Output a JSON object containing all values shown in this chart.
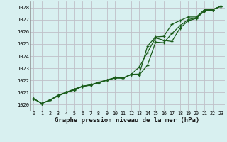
{
  "title": "Graphe pression niveau de la mer (hPa)",
  "background_color": "#d8f0f0",
  "plot_bg_color": "#d8f0f0",
  "grid_color": "#c0c0c8",
  "line_color": "#1a5c1a",
  "xlim": [
    -0.5,
    23.5
  ],
  "ylim": [
    1019.5,
    1028.5
  ],
  "yticks": [
    1020,
    1021,
    1022,
    1023,
    1024,
    1025,
    1026,
    1027,
    1028
  ],
  "xticks": [
    0,
    1,
    2,
    3,
    4,
    5,
    6,
    7,
    8,
    9,
    10,
    11,
    12,
    13,
    14,
    15,
    16,
    17,
    18,
    19,
    20,
    21,
    22,
    23
  ],
  "series1": {
    "x": [
      0,
      1,
      2,
      3,
      4,
      5,
      6,
      7,
      8,
      9,
      10,
      11,
      12,
      13,
      14,
      15,
      16,
      17,
      18,
      19,
      20,
      21,
      22,
      23
    ],
    "y": [
      1020.5,
      1020.1,
      1020.4,
      1020.7,
      1021.0,
      1021.2,
      1021.5,
      1021.6,
      1021.8,
      1022.0,
      1022.2,
      1022.2,
      1022.5,
      1023.1,
      1024.3,
      1025.5,
      1025.3,
      1025.2,
      1026.3,
      1026.9,
      1027.1,
      1027.7,
      1027.8,
      1028.1
    ]
  },
  "series2": {
    "x": [
      0,
      1,
      2,
      3,
      4,
      5,
      6,
      7,
      8,
      9,
      10,
      11,
      12,
      13,
      14,
      15,
      16,
      17,
      18,
      19,
      20,
      21,
      22,
      23
    ],
    "y": [
      1020.5,
      1020.1,
      1020.35,
      1020.75,
      1021.0,
      1021.25,
      1021.5,
      1021.62,
      1021.82,
      1022.02,
      1022.2,
      1022.18,
      1022.48,
      1022.45,
      1023.25,
      1025.15,
      1025.1,
      1025.85,
      1026.5,
      1027.0,
      1027.15,
      1027.75,
      1027.82,
      1028.1
    ]
  },
  "series3": {
    "x": [
      0,
      1,
      2,
      3,
      4,
      5,
      6,
      7,
      8,
      9,
      10,
      11,
      12,
      13,
      14,
      15,
      16,
      17,
      18,
      19,
      20,
      21,
      22,
      23
    ],
    "y": [
      1020.5,
      1020.1,
      1020.38,
      1020.78,
      1021.02,
      1021.28,
      1021.52,
      1021.64,
      1021.84,
      1022.04,
      1022.22,
      1022.2,
      1022.5,
      1022.52,
      1024.82,
      1025.58,
      1025.62,
      1026.62,
      1026.92,
      1027.22,
      1027.22,
      1027.82,
      1027.82,
      1028.1
    ]
  },
  "ylabel_fontsize": 5.5,
  "xlabel_fontsize": 5.5,
  "title_fontsize": 6.5
}
